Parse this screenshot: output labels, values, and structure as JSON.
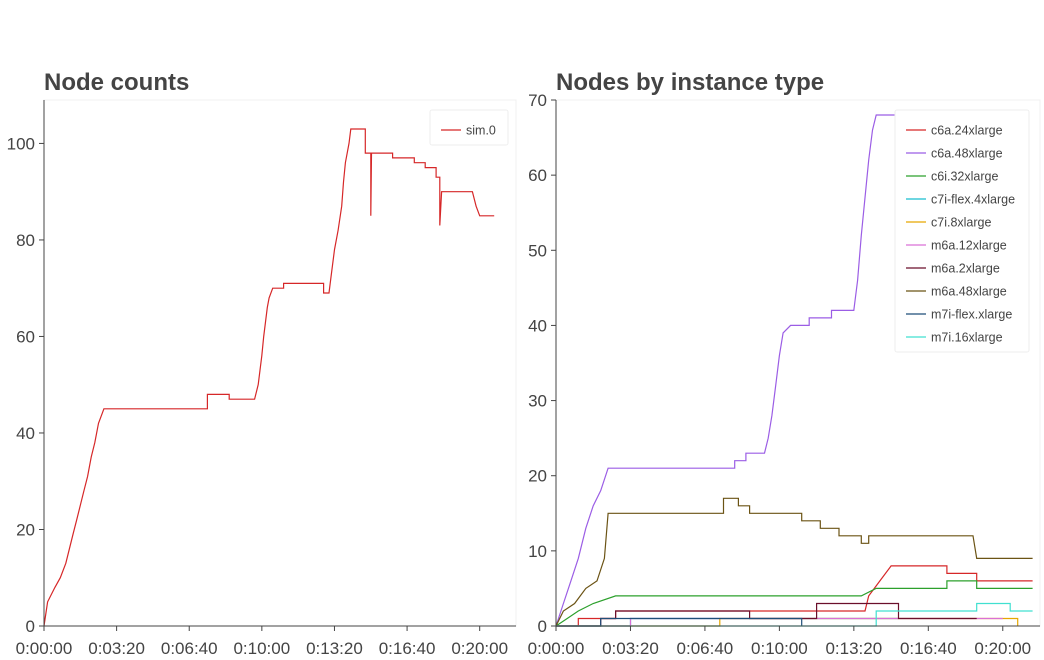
{
  "chart_data": [
    {
      "type": "line",
      "title": "Node counts",
      "x_unit": "h:mm:ss",
      "xlim": [
        "0:00:00",
        "0:21:40"
      ],
      "ylim": [
        0,
        109
      ],
      "x_ticks": [
        "0:00:00",
        "0:03:20",
        "0:06:40",
        "0:10:00",
        "0:13:20",
        "0:16:40",
        "0:20:00"
      ],
      "y_ticks": [
        0,
        20,
        40,
        60,
        80,
        100
      ],
      "legend": "top-right",
      "grid": false,
      "series": [
        {
          "name": "sim.0",
          "color": "#d62728",
          "points": [
            [
              "0:00:00",
              0
            ],
            [
              "0:00:10",
              5
            ],
            [
              "0:00:30",
              8
            ],
            [
              "0:00:45",
              10
            ],
            [
              "0:01:00",
              13
            ],
            [
              "0:01:10",
              16
            ],
            [
              "0:01:20",
              19
            ],
            [
              "0:01:30",
              22
            ],
            [
              "0:01:40",
              25
            ],
            [
              "0:01:50",
              28
            ],
            [
              "0:02:00",
              31
            ],
            [
              "0:02:10",
              35
            ],
            [
              "0:02:20",
              38
            ],
            [
              "0:02:30",
              42
            ],
            [
              "0:02:40",
              44
            ],
            [
              "0:02:45",
              45
            ],
            [
              "0:07:30",
              45
            ],
            [
              "0:07:30",
              48
            ],
            [
              "0:08:30",
              48
            ],
            [
              "0:08:30",
              47
            ],
            [
              "0:09:40",
              47
            ],
            [
              "0:09:50",
              50
            ],
            [
              "0:09:55",
              53
            ],
            [
              "0:10:00",
              56
            ],
            [
              "0:10:05",
              60
            ],
            [
              "0:10:10",
              63
            ],
            [
              "0:10:15",
              66
            ],
            [
              "0:10:20",
              68
            ],
            [
              "0:10:30",
              70
            ],
            [
              "0:11:00",
              70
            ],
            [
              "0:11:00",
              71
            ],
            [
              "0:12:50",
              71
            ],
            [
              "0:12:50",
              69
            ],
            [
              "0:13:05",
              69
            ],
            [
              "0:13:10",
              72
            ],
            [
              "0:13:20",
              78
            ],
            [
              "0:13:30",
              82
            ],
            [
              "0:13:40",
              87
            ],
            [
              "0:13:45",
              92
            ],
            [
              "0:13:50",
              96
            ],
            [
              "0:14:00",
              100
            ],
            [
              "0:14:05",
              103
            ],
            [
              "0:14:45",
              103
            ],
            [
              "0:14:45",
              98
            ],
            [
              "0:15:00",
              98
            ],
            [
              "0:15:00",
              85
            ],
            [
              "0:15:02",
              98
            ],
            [
              "0:16:00",
              98
            ],
            [
              "0:16:00",
              97
            ],
            [
              "0:17:00",
              97
            ],
            [
              "0:17:00",
              96
            ],
            [
              "0:17:30",
              96
            ],
            [
              "0:17:30",
              95
            ],
            [
              "0:18:00",
              95
            ],
            [
              "0:18:00",
              93
            ],
            [
              "0:18:10",
              93
            ],
            [
              "0:18:10",
              83
            ],
            [
              "0:18:15",
              90
            ],
            [
              "0:19:40",
              90
            ],
            [
              "0:19:50",
              87
            ],
            [
              "0:20:00",
              85
            ],
            [
              "0:20:40",
              85
            ]
          ]
        }
      ]
    },
    {
      "type": "line",
      "title": "Nodes by instance type",
      "x_unit": "h:mm:ss",
      "xlim": [
        "0:00:00",
        "0:21:40"
      ],
      "ylim": [
        0,
        70
      ],
      "x_ticks": [
        "0:00:00",
        "0:03:20",
        "0:06:40",
        "0:10:00",
        "0:13:20",
        "0:16:40",
        "0:20:00"
      ],
      "y_ticks": [
        0,
        10,
        20,
        30,
        40,
        50,
        60,
        70
      ],
      "legend": "top-right",
      "grid": false,
      "series": [
        {
          "name": "c6a.24xlarge",
          "color": "#d62728",
          "points": [
            [
              "0:00:00",
              0
            ],
            [
              "0:01:00",
              0
            ],
            [
              "0:01:00",
              1
            ],
            [
              "0:02:40",
              1
            ],
            [
              "0:02:40",
              2
            ],
            [
              "0:13:50",
              2
            ],
            [
              "0:14:00",
              4
            ],
            [
              "0:14:30",
              6
            ],
            [
              "0:15:00",
              8
            ],
            [
              "0:17:30",
              8
            ],
            [
              "0:17:30",
              7
            ],
            [
              "0:18:50",
              7
            ],
            [
              "0:18:50",
              6
            ],
            [
              "0:21:20",
              6
            ]
          ]
        },
        {
          "name": "c6a.48xlarge",
          "color": "#9b5de5",
          "points": [
            [
              "0:00:00",
              0
            ],
            [
              "0:00:20",
              3
            ],
            [
              "0:00:40",
              6
            ],
            [
              "0:01:00",
              9
            ],
            [
              "0:01:20",
              13
            ],
            [
              "0:01:40",
              16
            ],
            [
              "0:02:00",
              18
            ],
            [
              "0:02:20",
              21
            ],
            [
              "0:08:00",
              21
            ],
            [
              "0:08:00",
              22
            ],
            [
              "0:08:30",
              22
            ],
            [
              "0:08:30",
              23
            ],
            [
              "0:09:20",
              23
            ],
            [
              "0:09:30",
              25
            ],
            [
              "0:09:40",
              28
            ],
            [
              "0:09:50",
              32
            ],
            [
              "0:10:00",
              36
            ],
            [
              "0:10:10",
              39
            ],
            [
              "0:10:30",
              40
            ],
            [
              "0:11:20",
              40
            ],
            [
              "0:11:20",
              41
            ],
            [
              "0:12:20",
              41
            ],
            [
              "0:12:20",
              42
            ],
            [
              "0:13:20",
              42
            ],
            [
              "0:13:30",
              46
            ],
            [
              "0:13:40",
              52
            ],
            [
              "0:13:50",
              57
            ],
            [
              "0:14:00",
              62
            ],
            [
              "0:14:10",
              66
            ],
            [
              "0:14:20",
              68
            ],
            [
              "0:15:10",
              68
            ]
          ]
        },
        {
          "name": "c6i.32xlarge",
          "color": "#2ca02c",
          "points": [
            [
              "0:00:00",
              0
            ],
            [
              "0:00:30",
              1
            ],
            [
              "0:01:00",
              2
            ],
            [
              "0:01:40",
              3
            ],
            [
              "0:02:40",
              4
            ],
            [
              "0:13:20",
              4
            ],
            [
              "0:13:40",
              4
            ],
            [
              "0:14:20",
              5
            ],
            [
              "0:17:30",
              5
            ],
            [
              "0:17:30",
              6
            ],
            [
              "0:18:50",
              6
            ],
            [
              "0:18:50",
              5
            ],
            [
              "0:21:20",
              5
            ]
          ]
        },
        {
          "name": "c7i-flex.4xlarge",
          "color": "#17becf",
          "points": [
            [
              "0:00:00",
              0
            ],
            [
              "0:03:20",
              0
            ],
            [
              "0:03:20",
              1
            ],
            [
              "0:15:20",
              1
            ]
          ]
        },
        {
          "name": "c7i.8xlarge",
          "color": "#e6a700",
          "points": [
            [
              "0:00:00",
              0
            ],
            [
              "0:07:20",
              0
            ],
            [
              "0:07:20",
              1
            ],
            [
              "0:20:40",
              1
            ],
            [
              "0:20:40",
              0
            ]
          ]
        },
        {
          "name": "m6a.12xlarge",
          "color": "#da70d6",
          "points": [
            [
              "0:00:00",
              0
            ],
            [
              "0:03:20",
              0
            ],
            [
              "0:03:20",
              1
            ],
            [
              "0:20:00",
              1
            ]
          ]
        },
        {
          "name": "m6a.2xlarge",
          "color": "#6b0f2b",
          "points": [
            [
              "0:00:00",
              0
            ],
            [
              "0:02:00",
              0
            ],
            [
              "0:02:00",
              1
            ],
            [
              "0:02:40",
              1
            ],
            [
              "0:02:40",
              2
            ],
            [
              "0:08:40",
              2
            ],
            [
              "0:08:40",
              1
            ],
            [
              "0:11:40",
              1
            ],
            [
              "0:11:40",
              3
            ],
            [
              "0:15:20",
              3
            ],
            [
              "0:15:20",
              1
            ],
            [
              "0:18:50",
              1
            ]
          ]
        },
        {
          "name": "m6a.48xlarge",
          "color": "#6b5314",
          "points": [
            [
              "0:00:00",
              0
            ],
            [
              "0:00:20",
              2
            ],
            [
              "0:00:50",
              3
            ],
            [
              "0:01:20",
              5
            ],
            [
              "0:01:50",
              6
            ],
            [
              "0:02:10",
              9
            ],
            [
              "0:02:20",
              15
            ],
            [
              "0:07:30",
              15
            ],
            [
              "0:07:30",
              17
            ],
            [
              "0:08:10",
              17
            ],
            [
              "0:08:10",
              16
            ],
            [
              "0:08:40",
              16
            ],
            [
              "0:08:40",
              15
            ],
            [
              "0:11:00",
              15
            ],
            [
              "0:11:00",
              14
            ],
            [
              "0:11:50",
              14
            ],
            [
              "0:11:50",
              13
            ],
            [
              "0:12:40",
              13
            ],
            [
              "0:12:40",
              12
            ],
            [
              "0:13:40",
              12
            ],
            [
              "0:13:40",
              11
            ],
            [
              "0:14:00",
              11
            ],
            [
              "0:14:00",
              12
            ],
            [
              "0:18:40",
              12
            ],
            [
              "0:18:50",
              9
            ],
            [
              "0:21:20",
              9
            ]
          ]
        },
        {
          "name": "m7i-flex.xlarge",
          "color": "#1f4e79",
          "points": [
            [
              "0:00:00",
              0
            ],
            [
              "0:02:00",
              0
            ],
            [
              "0:02:00",
              1
            ],
            [
              "0:11:00",
              1
            ],
            [
              "0:11:00",
              0
            ]
          ]
        },
        {
          "name": "m7i.16xlarge",
          "color": "#40e0d0",
          "points": [
            [
              "0:00:00",
              0
            ],
            [
              "0:14:20",
              0
            ],
            [
              "0:14:20",
              2
            ],
            [
              "0:18:50",
              2
            ],
            [
              "0:18:50",
              3
            ],
            [
              "0:20:20",
              3
            ],
            [
              "0:20:20",
              2
            ],
            [
              "0:21:20",
              2
            ]
          ]
        }
      ]
    }
  ]
}
